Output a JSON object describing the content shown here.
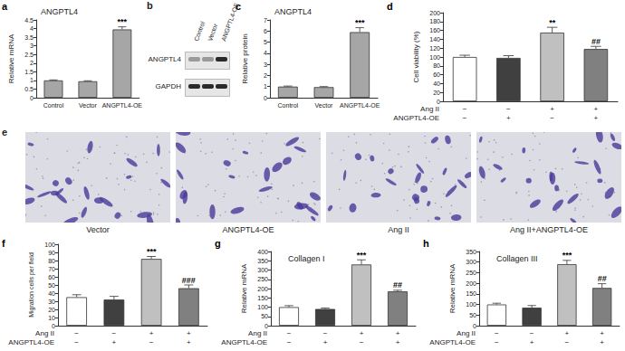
{
  "chart_data": [
    {
      "panel": "a",
      "type": "bar",
      "title": "ANGPTL4",
      "y_label": "Relative mRNA",
      "categories": [
        "Control",
        "Vector",
        "ANGPTL4-OE"
      ],
      "values": [
        1.0,
        0.95,
        3.95
      ],
      "errors": [
        0.03,
        0.03,
        0.15
      ],
      "annotations": [
        null,
        null,
        "***"
      ],
      "colors": [
        "#a6a6a6",
        "#a6a6a6",
        "#a6a6a6"
      ],
      "ylim": [
        0,
        4.5
      ],
      "yticks": [
        0,
        0.5,
        1,
        1.5,
        2,
        2.5,
        3,
        3.5,
        4,
        4.5
      ],
      "grid": false
    },
    {
      "panel": "c",
      "type": "bar",
      "title": "ANGPTL4",
      "y_label": "Relative protein",
      "categories": [
        "Control",
        "Vector",
        "ANGPTL4-OE"
      ],
      "values": [
        1.0,
        0.95,
        5.9
      ],
      "errors": [
        0.05,
        0.05,
        0.4
      ],
      "annotations": [
        null,
        null,
        "***"
      ],
      "colors": [
        "#a6a6a6",
        "#a6a6a6",
        "#a6a6a6"
      ],
      "ylim": [
        0,
        7
      ],
      "yticks": [
        0,
        1,
        2,
        3,
        4,
        5,
        6,
        7
      ],
      "grid": false
    },
    {
      "panel": "d",
      "type": "bar",
      "y_label": "Cell viability (%)",
      "factors": [
        {
          "name": "Ang II",
          "signs": [
            "−",
            "−",
            "+",
            "+"
          ]
        },
        {
          "name": "ANGPTL4-OE",
          "signs": [
            "−",
            "+",
            "−",
            "+"
          ]
        }
      ],
      "values": [
        100,
        98,
        155,
        118
      ],
      "errors": [
        4,
        5,
        12,
        6
      ],
      "annotations": [
        null,
        null,
        "**",
        "##"
      ],
      "colors": [
        "#ffffff",
        "#404040",
        "#c0c0c0",
        "#808080"
      ],
      "ylim": [
        0,
        200
      ],
      "yticks": [
        0,
        20,
        40,
        60,
        80,
        100,
        120,
        140,
        160,
        180,
        200
      ],
      "grid": false
    },
    {
      "panel": "f",
      "type": "bar",
      "y_label": "Migration cells per field",
      "factors": [
        {
          "name": "Ang II",
          "signs": [
            "−",
            "−",
            "+",
            "+"
          ]
        },
        {
          "name": "ANGPTL4-OE",
          "signs": [
            "−",
            "+",
            "−",
            "+"
          ]
        }
      ],
      "values": [
        35,
        32,
        82,
        46
      ],
      "errors": [
        3,
        4,
        3,
        4
      ],
      "annotations": [
        null,
        null,
        "***",
        "###"
      ],
      "colors": [
        "#ffffff",
        "#404040",
        "#c0c0c0",
        "#808080"
      ],
      "ylim": [
        0,
        100
      ],
      "yticks": [
        0,
        10,
        20,
        30,
        40,
        50,
        60,
        70,
        80,
        90,
        100
      ],
      "grid": false
    },
    {
      "panel": "g",
      "type": "bar",
      "title": "Collagen I",
      "y_label": "Relative mRNA",
      "factors": [
        {
          "name": "Ang II",
          "signs": [
            "−",
            "−",
            "+",
            "+"
          ]
        },
        {
          "name": "ANGPTL4-OE",
          "signs": [
            "−",
            "+",
            "−",
            "+"
          ]
        }
      ],
      "values": [
        100,
        90,
        330,
        185
      ],
      "errors": [
        8,
        5,
        25,
        6
      ],
      "annotations": [
        null,
        null,
        "***",
        "##"
      ],
      "colors": [
        "#ffffff",
        "#404040",
        "#c0c0c0",
        "#808080"
      ],
      "ylim": [
        0,
        400
      ],
      "yticks": [
        0,
        50,
        100,
        150,
        200,
        250,
        300,
        350,
        400
      ],
      "grid": false
    },
    {
      "panel": "h",
      "type": "bar",
      "title": "Collagen III",
      "y_label": "Relative mRNA",
      "factors": [
        {
          "name": "Ang II",
          "signs": [
            "−",
            "−",
            "+",
            "+"
          ]
        },
        {
          "name": "ANGPTL4-OE",
          "signs": [
            "−",
            "+",
            "−",
            "+"
          ]
        }
      ],
      "values": [
        100,
        85,
        290,
        178
      ],
      "errors": [
        6,
        10,
        18,
        20
      ],
      "annotations": [
        null,
        null,
        "***",
        "##"
      ],
      "colors": [
        "#ffffff",
        "#404040",
        "#c0c0c0",
        "#808080"
      ],
      "ylim": [
        0,
        350
      ],
      "yticks": [
        0,
        50,
        100,
        150,
        200,
        250,
        300,
        350
      ],
      "grid": false
    }
  ],
  "blot": {
    "panel": "b",
    "lanes": [
      "Control",
      "Vector",
      "ANGPTL4-OE"
    ],
    "rows": [
      "ANGPTL4",
      "GAPDH"
    ]
  },
  "images": {
    "panel": "e",
    "labels": [
      "Vector",
      "ANGPTL4-OE",
      "Ang II",
      "Ang II+ANGPTL4-OE"
    ]
  }
}
